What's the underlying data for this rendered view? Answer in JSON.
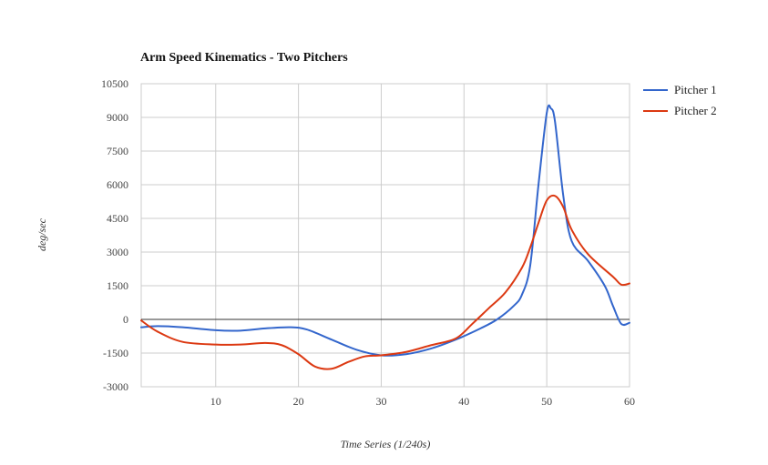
{
  "chart_data": {
    "type": "line",
    "title": "Arm Speed Kinematics - Two Pitchers",
    "xlabel": "Time Series (1/240s)",
    "ylabel": "deg/sec",
    "xlim": [
      1,
      60
    ],
    "ylim": [
      -3000,
      10500
    ],
    "xticks": [
      10,
      20,
      30,
      40,
      50,
      60
    ],
    "yticks": [
      -3000,
      -1500,
      0,
      1500,
      3000,
      4500,
      6000,
      7500,
      9000,
      10500
    ],
    "grid": true,
    "legend_position": "right",
    "series": [
      {
        "name": "Pitcher 1",
        "color": "#3366cc",
        "x": [
          1,
          3,
          6,
          10,
          13,
          16,
          19,
          21,
          24,
          27,
          30,
          33,
          36,
          39,
          42,
          44,
          46,
          47,
          48,
          49,
          50,
          50.5,
          51,
          52,
          53,
          55,
          57,
          58,
          59,
          60
        ],
        "y": [
          -350,
          -300,
          -350,
          -480,
          -500,
          -400,
          -350,
          -450,
          -900,
          -1350,
          -1600,
          -1550,
          -1300,
          -900,
          -400,
          0,
          600,
          1100,
          2400,
          6000,
          9200,
          9400,
          8800,
          5500,
          3500,
          2600,
          1500,
          600,
          -200,
          -150
        ]
      },
      {
        "name": "Pitcher 2",
        "color": "#dc3912",
        "x": [
          1,
          3,
          6,
          10,
          13,
          16,
          18,
          20,
          22,
          24,
          26,
          28,
          30,
          33,
          36,
          39,
          41,
          43,
          45,
          47,
          48,
          49,
          50,
          51,
          52,
          53,
          55,
          58,
          59,
          60
        ],
        "y": [
          -50,
          -550,
          -1000,
          -1120,
          -1120,
          -1050,
          -1150,
          -1550,
          -2100,
          -2200,
          -1900,
          -1650,
          -1600,
          -1450,
          -1150,
          -850,
          -200,
          500,
          1200,
          2300,
          3200,
          4300,
          5300,
          5500,
          5000,
          4000,
          2900,
          1900,
          1550,
          1600
        ]
      }
    ]
  }
}
